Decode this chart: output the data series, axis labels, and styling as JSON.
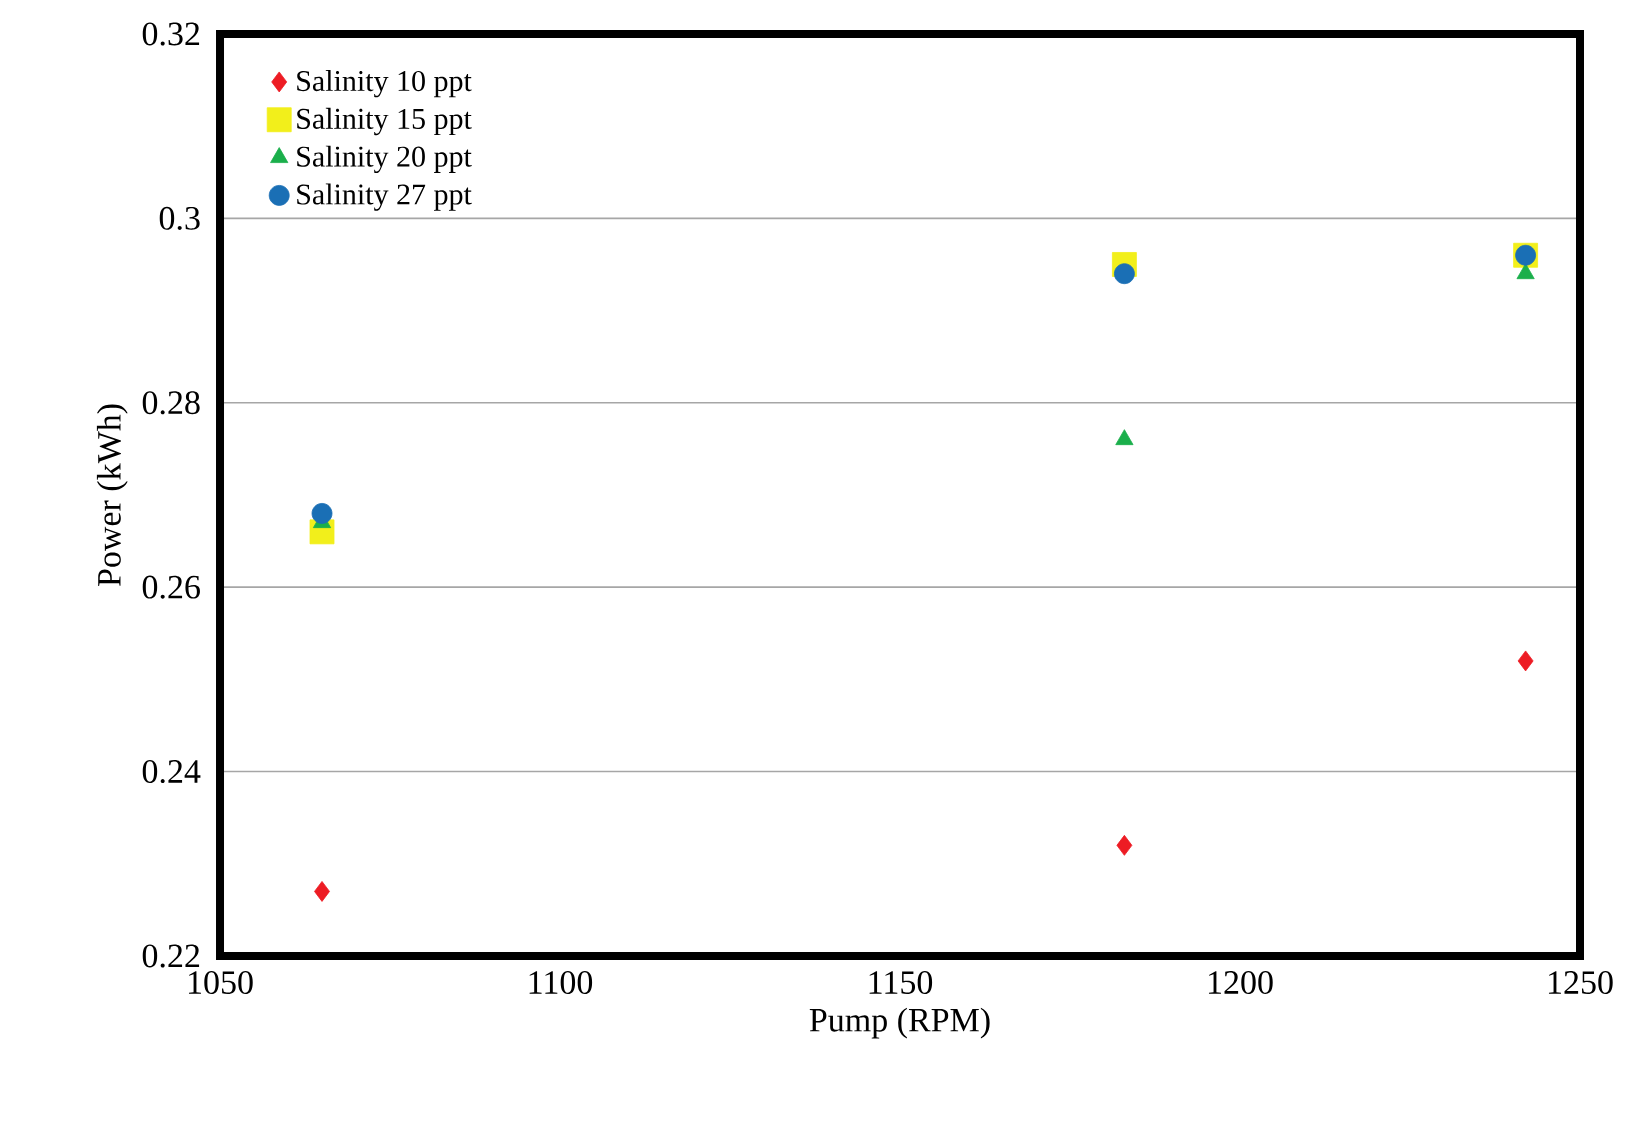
{
  "chart_data": {
    "type": "scatter",
    "xlabel": "Pump (RPM)",
    "ylabel": "Power (kWh)",
    "xlim": [
      1050,
      1250
    ],
    "xticks": [
      1050,
      1100,
      1150,
      1200,
      1250
    ],
    "ylim": [
      0.22,
      0.32
    ],
    "yticks": [
      0.22,
      0.24,
      0.26,
      0.28,
      0.3,
      0.32
    ],
    "grid": "y",
    "legend": "top left",
    "x": [
      1065,
      1183,
      1242
    ],
    "series": [
      {
        "name": "Salinity 10 ppt",
        "color": "#ed1c24",
        "marker": "diamond",
        "values": [
          0.227,
          0.232,
          0.252
        ]
      },
      {
        "name": "Salinity 15 ppt",
        "color": "#f2ef1b",
        "marker": "square",
        "values": [
          0.266,
          0.295,
          0.296
        ]
      },
      {
        "name": "Salinity 20 ppt",
        "color": "#1aaf4b",
        "marker": "triangle",
        "values": [
          0.267,
          0.276,
          0.294
        ]
      },
      {
        "name": "Salinity 27 ppt",
        "color": "#1a6fb5",
        "marker": "circle",
        "values": [
          0.268,
          0.294,
          0.296
        ]
      }
    ]
  }
}
